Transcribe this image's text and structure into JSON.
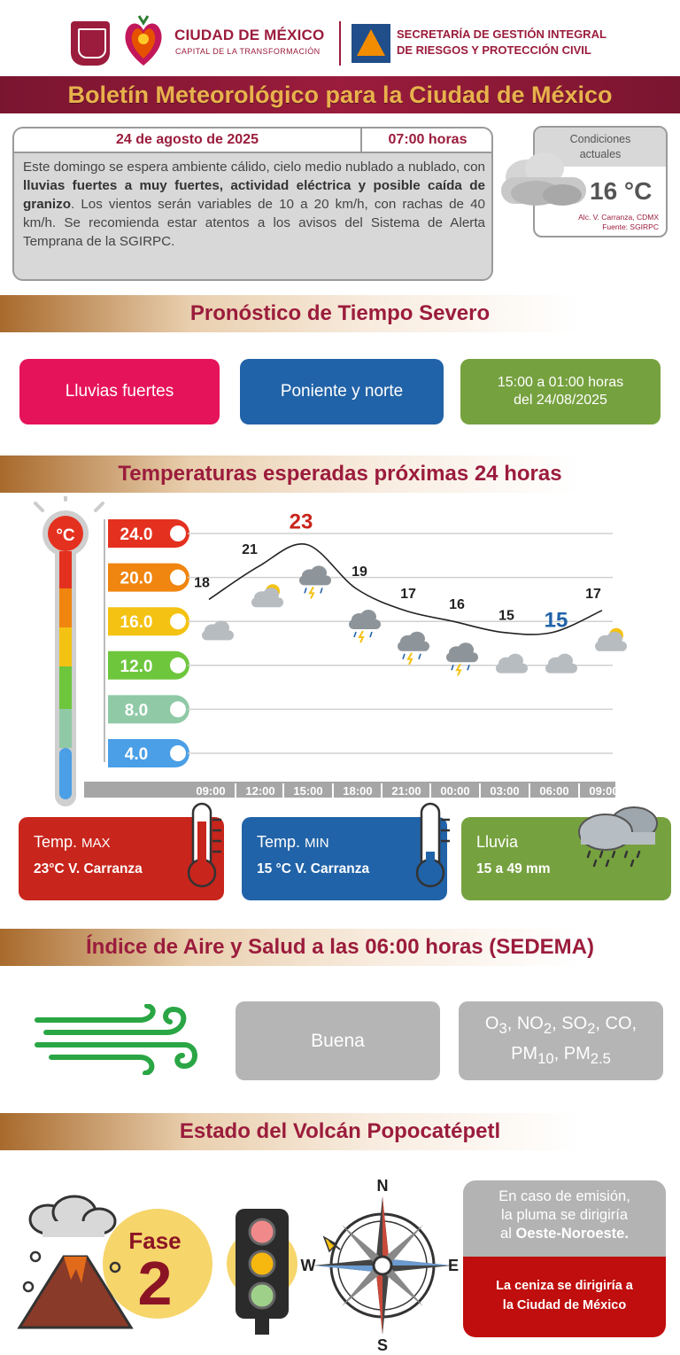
{
  "header": {
    "org_name": "CIUDAD DE MÉXICO",
    "org_tagline": "CAPITAL DE LA TRANSFORMACIÓN",
    "agency_line1": "SECRETARÍA DE GESTIÓN INTEGRAL",
    "agency_line2": "DE RIESGOS Y PROTECCIÓN CIVIL"
  },
  "title": "Boletín Meteorológico para la Ciudad de México",
  "bulletin": {
    "date": "24 de agosto de 2025",
    "time": "07:00 horas",
    "text_1": "Este domingo se espera ambiente cálido, cielo medio nublado a nublado, con ",
    "text_bold": "lluvias fuertes a muy fuertes, actividad eléctrica y posible caída de granizo",
    "text_2": ". Los vientos serán variables de 10 a 20 km/h, con rachas de 40 km/h. Se recomienda estar atentos a los avisos del Sistema de Alerta Temprana de la SGIRPC."
  },
  "current": {
    "heading_1": "Condiciones",
    "heading_2": "actuales",
    "temperature": "16 °C",
    "location": "Alc. V. Carranza, CDMX",
    "source": "Fuente: SGIRPC",
    "icon": "cloud-icon"
  },
  "severe": {
    "title": "Pronóstico de Tiempo Severo",
    "phenomenon": "Lluvias fuertes",
    "zone": "Poniente y norte",
    "schedule_1": "15:00 a 01:00 horas",
    "schedule_2": "del 24/08/2025",
    "colors": {
      "phenomenon": "#e5135a",
      "zone": "#2163a8",
      "schedule": "#76a13f"
    }
  },
  "temps": {
    "title": "Temperaturas esperadas próximas 24 horas",
    "unit_label": "°C",
    "scale": [
      "24.0",
      "20.0",
      "16.0",
      "12.0",
      "8.0",
      "4.0"
    ],
    "scale_values": [
      24,
      20,
      16,
      12,
      8,
      4
    ],
    "scale_colors": [
      "#e4311f",
      "#f0850f",
      "#f4c212",
      "#6ec63c",
      "#8fc9a6",
      "#4a9fe6"
    ],
    "hours": [
      "09:00",
      "12:00",
      "15:00",
      "18:00",
      "21:00",
      "00:00",
      "03:00",
      "06:00",
      "09:00"
    ],
    "values": [
      18,
      21,
      23,
      19,
      17,
      16,
      15,
      15,
      17
    ],
    "labels": [
      "18",
      "21",
      "23",
      "19",
      "17",
      "16",
      "15",
      "15",
      "17"
    ],
    "icons": [
      "cloud-icon",
      "sun-cloud-icon",
      "storm-icon",
      "storm-icon",
      "storm-icon",
      "storm-icon",
      "cloud-icon",
      "cloud-icon",
      "sun-cloud-icon"
    ],
    "max_color": "#c8251c",
    "min_color": "#2163a8"
  },
  "cards": {
    "max_label": "Temp.",
    "max_label_small": "MAX",
    "max_value": "23°C  V. Carranza",
    "min_label": "Temp.",
    "min_label_small": "MIN",
    "min_value": "15 °C  V. Carranza",
    "rain_label": "Lluvia",
    "rain_value": "15 a 49 mm"
  },
  "air": {
    "title": "Índice de Aire y Salud a las 06:00 horas (SEDEMA)",
    "quality": "Buena",
    "pollutants_line1": "O3, NO2, SO2, CO,",
    "pollutants_line2": "PM10, PM2.5",
    "icon": "wind-icon"
  },
  "volcano": {
    "title": "Estado del Volcán Popocatépetl",
    "phase_label": "Fase",
    "phase_number": "2",
    "compass_n": "N",
    "compass_s": "S",
    "compass_e": "E",
    "compass_w": "W",
    "emission_1": "En caso de emisión,",
    "emission_2": "la pluma se dirigiría",
    "emission_3": "al ",
    "emission_dir": "Oeste-Noroeste.",
    "ash_1": "La ceniza se dirigiría a",
    "ash_2": "la Ciudad de México"
  }
}
